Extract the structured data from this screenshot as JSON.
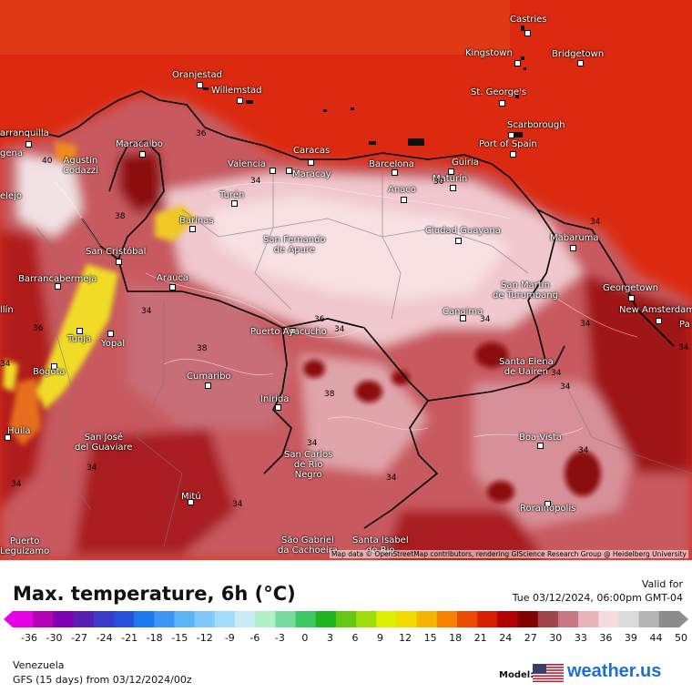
{
  "map": {
    "cities": [
      {
        "id": "castries",
        "name": "Castries"
      },
      {
        "id": "kingstown",
        "name": "Kingstown"
      },
      {
        "id": "bridgetown",
        "name": "Bridgetown"
      },
      {
        "id": "oranjestad",
        "name": "Oranjestad"
      },
      {
        "id": "willemstad",
        "name": "Willemstad"
      },
      {
        "id": "st-georges",
        "name": "St. George's"
      },
      {
        "id": "scarborough",
        "name": "Scarborough"
      },
      {
        "id": "barranquilla",
        "name": "arranquilla"
      },
      {
        "id": "maracaibo",
        "name": "Maracaibo"
      },
      {
        "id": "caracas",
        "name": "Caracas"
      },
      {
        "id": "port-of-spain",
        "name": "Port of Spain"
      },
      {
        "id": "cartagena",
        "name": "gena"
      },
      {
        "id": "agustin-codazzi",
        "name": "Agustín\nCodazzi"
      },
      {
        "id": "valencia",
        "name": "Valencia"
      },
      {
        "id": "maracay",
        "name": "Maracay"
      },
      {
        "id": "barcelona",
        "name": "Barcelona"
      },
      {
        "id": "guiria",
        "name": "Güiria"
      },
      {
        "id": "maturin",
        "name": "Maturín"
      },
      {
        "id": "anaco",
        "name": "Anaco"
      },
      {
        "id": "turen",
        "name": "Turén"
      },
      {
        "id": "barinas",
        "name": "Barinas"
      },
      {
        "id": "montelibano",
        "name": "elejo"
      },
      {
        "id": "ciudad-guayana",
        "name": "Ciudad Guayana"
      },
      {
        "id": "mabaruma",
        "name": "Mabaruma"
      },
      {
        "id": "san-cristobal",
        "name": "San Cristóbal"
      },
      {
        "id": "san-fernando",
        "name": "San Fernando\nde Apure"
      },
      {
        "id": "barrancabermeja",
        "name": "Barrancabermeja"
      },
      {
        "id": "arauca",
        "name": "Arauca"
      },
      {
        "id": "san-martin",
        "name": "San Martín\nde Turumbang"
      },
      {
        "id": "georgetown",
        "name": "Georgetown"
      },
      {
        "id": "new-amsterdam",
        "name": "New Amsterdam"
      },
      {
        "id": "medellin",
        "name": "llín"
      },
      {
        "id": "canaima",
        "name": "Canaima"
      },
      {
        "id": "tunja",
        "name": "Tunja"
      },
      {
        "id": "yopal",
        "name": "Yopal"
      },
      {
        "id": "puerto-ayacucho",
        "name": "Puerto Ayacucho"
      },
      {
        "id": "santa-elena",
        "name": "Santa Elena\nde Uairen"
      },
      {
        "id": "bogota",
        "name": "Bogota"
      },
      {
        "id": "cumaribo",
        "name": "Cumaribo"
      },
      {
        "id": "inirida",
        "name": "Inírida"
      },
      {
        "id": "huila",
        "name": "Huila"
      },
      {
        "id": "san-jose",
        "name": "San José\ndel Guaviare"
      },
      {
        "id": "boa-vista",
        "name": "Boa Vista"
      },
      {
        "id": "san-carlos",
        "name": "San Carlos\nde Río\nNegro"
      },
      {
        "id": "mitu",
        "name": "Mitú"
      },
      {
        "id": "rorainopolis",
        "name": "Rorainópolis"
      },
      {
        "id": "puerto-leguizamo",
        "name": "Puerto\nLeguízamo"
      },
      {
        "id": "sao-gabriel",
        "name": "São Gabriel\nda Cachoeira"
      },
      {
        "id": "santa-isabel",
        "name": "Santa Isabel\ndo Rio"
      },
      {
        "id": "pa",
        "name": "Pa"
      }
    ],
    "isotherm_labels": [
      "36",
      "40",
      "34",
      "38",
      "36",
      "38",
      "34",
      "30",
      "34",
      "34",
      "34",
      "38",
      "34",
      "36",
      "34",
      "34",
      "34",
      "34",
      "34",
      "34",
      "34",
      "34",
      "34",
      "34"
    ],
    "attribution": "Map data © OpenStreetMap contributors, rendering GIScience Research Group @ Heidelberg University"
  },
  "legend": {
    "title": "Max. temperature, 6h (°C)",
    "valid_label": "Valid for",
    "valid_time": "Tue 03/12/2024, 06:00pm GMT-04",
    "ticks": [
      "-36",
      "-30",
      "-27",
      "-24",
      "-21",
      "-18",
      "-15",
      "-12",
      "-9",
      "-6",
      "-3",
      "0",
      "3",
      "6",
      "9",
      "12",
      "15",
      "18",
      "21",
      "24",
      "27",
      "30",
      "33",
      "36",
      "39",
      "44",
      "50"
    ],
    "colors": [
      "#e600e6",
      "#b400b4",
      "#7d00b4",
      "#5a1eb4",
      "#3c3cc8",
      "#2850dc",
      "#1e78f0",
      "#3c96f5",
      "#5ab4f5",
      "#82c8fa",
      "#a5dcfa",
      "#c8ebf5",
      "#b4f0c8",
      "#78dca0",
      "#3cc864",
      "#1eb41e",
      "#64c814",
      "#a0dc0a",
      "#dcf000",
      "#f5dc00",
      "#f5b400",
      "#f58200",
      "#eb4b00",
      "#d71e00",
      "#b40000",
      "#820000",
      "#a0464b",
      "#c87882",
      "#e6b4b9",
      "#f5dce1",
      "#dcdcdc",
      "#b4b4b4",
      "#8c8c8c"
    ],
    "region": "Venezuela",
    "model_run": "GFS (15 days) from 03/12/2024/00z",
    "model_label": "Model:",
    "brand": "weather.us"
  }
}
